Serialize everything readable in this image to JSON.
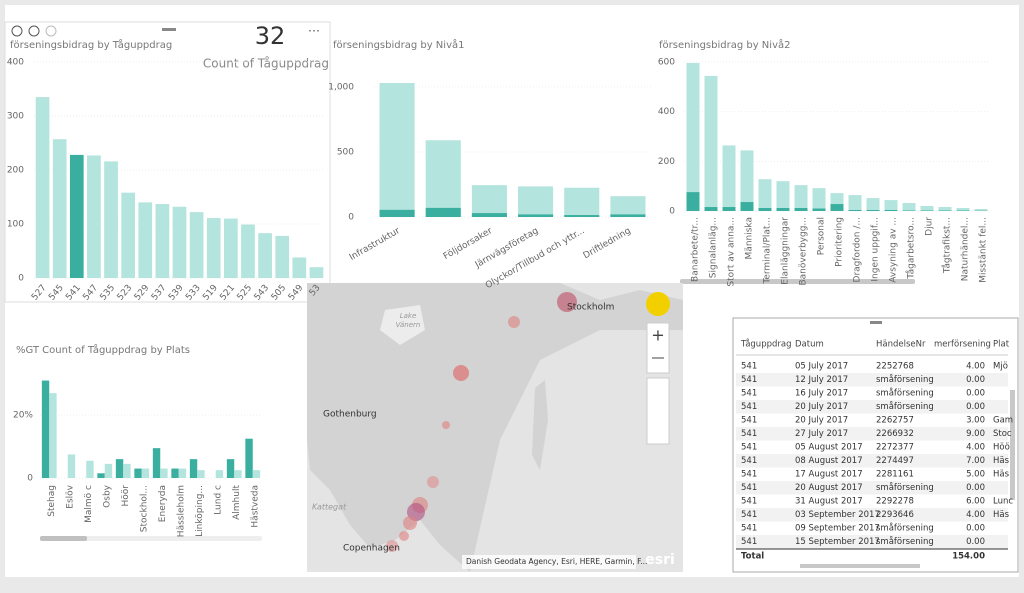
{
  "chart_data": [
    {
      "type": "bar",
      "title": "förseningsbidrag by Tåguppdrag",
      "categories": [
        "527",
        "545",
        "541",
        "547",
        "535",
        "523",
        "529",
        "537",
        "539",
        "533",
        "519",
        "521",
        "525",
        "543",
        "505",
        "549",
        "53"
      ],
      "series": [
        {
          "values": [
            335,
            257,
            228,
            227,
            216,
            158,
            140,
            137,
            132,
            122,
            111,
            110,
            99,
            83,
            78,
            38,
            20
          ],
          "colors": [
            "#b3e4dd",
            "#b3e4dd",
            "#3aaf9f",
            "#b3e4dd",
            "#b3e4dd",
            "#b3e4dd",
            "#b3e4dd",
            "#b3e4dd",
            "#b3e4dd",
            "#b3e4dd",
            "#b3e4dd",
            "#b3e4dd",
            "#b3e4dd",
            "#b3e4dd",
            "#b3e4dd",
            "#b3e4dd",
            "#b3e4dd"
          ]
        }
      ],
      "ylim": [
        0,
        400
      ],
      "yticks": [
        0,
        100,
        200,
        300,
        400
      ]
    },
    {
      "type": "bar",
      "title": "förseningsbidrag by Nivå1",
      "categories": [
        "Infrastruktur",
        null,
        "Följdorsaker",
        "Järnvägsföretag",
        "Olyckor/Tillbud och yttr...",
        "Driftledning"
      ],
      "series": [
        {
          "color": "#b3e4dd",
          "values": [
            1030,
            590,
            245,
            235,
            225,
            160
          ]
        },
        {
          "color": "#3aaf9f",
          "values": [
            55,
            70,
            30,
            20,
            15,
            20
          ]
        }
      ],
      "ylim": [
        0,
        1130
      ],
      "yticks": [
        0,
        500,
        {
          "value": 1000,
          "label": "1,000"
        }
      ]
    },
    {
      "type": "bar",
      "title": "förseningsbidrag by Nivå2",
      "categories": [
        "Banarbete/tr...",
        "Signalanläg...",
        "Stort av anna...",
        "Människa",
        "Terminal/Plat...",
        "Elanläggningar",
        "Banöverbygg...",
        "Personal",
        "Prioritering",
        "Dragfordon /...",
        "Ingen uppgif...",
        "Avsyning av ...",
        "Tågarbetsro...",
        "Djur",
        "Tågtrafikst...",
        "Naturhändel...",
        "Misstänkt fel..."
      ],
      "series": [
        {
          "color": "#b3e4dd",
          "values": [
            596,
            544,
            264,
            244,
            128,
            120,
            104,
            92,
            72,
            64,
            52,
            44,
            32,
            20,
            16,
            12,
            8
          ]
        },
        {
          "color": "#3aaf9f",
          "values": [
            76,
            16,
            16,
            36,
            12,
            12,
            12,
            10,
            28,
            4,
            4,
            4,
            2,
            2,
            2,
            2,
            1
          ]
        }
      ],
      "ylim": [
        0,
        600
      ],
      "yticks": [
        0,
        200,
        400,
        600
      ]
    },
    {
      "type": "bar",
      "title": "%GT Count of Tåguppdrag by Plats",
      "categories": [
        "Stehag",
        "Eslöv",
        "Malmö c",
        "Osby",
        "Höör",
        "Stockhol...",
        "Eneryda",
        "Hässleholm",
        "Linköping...",
        "Lund c",
        "Almhult",
        "Hästveda"
      ],
      "series": [
        {
          "color": "#3aaf9f",
          "values": [
            31,
            0,
            0,
            1.5,
            6,
            3,
            9.5,
            3,
            6,
            0,
            6,
            12.5
          ]
        },
        {
          "color": "#b3e4dd",
          "values": [
            27,
            7.5,
            5.5,
            4.5,
            4.5,
            3,
            3,
            3,
            2.5,
            2.5,
            2.5,
            2.5
          ]
        }
      ],
      "ylim": [
        0,
        35
      ],
      "yticks": [
        0,
        {
          "value": 20,
          "label": "20%"
        }
      ]
    }
  ],
  "card": {
    "value": "32",
    "label": "Count of Tåguppdrag"
  },
  "map": {
    "labels": [
      "Stockholm",
      "Gothenburg",
      "Kattegat",
      "Copenhagen"
    ],
    "lake": [
      "Lake",
      "Vänern"
    ],
    "attribution": "Danish Geodata Agency, Esri, HERE, Garmin, F...",
    "logo": "esri"
  },
  "table": {
    "columns": [
      "Tåguppdrag",
      "Datum",
      "HändelseNr",
      "merförsening",
      "Plat"
    ],
    "rows": [
      [
        "541",
        "05 July 2017",
        "2252768",
        "4.00",
        "Mjö"
      ],
      [
        "541",
        "12 July 2017",
        "småförsening",
        "0.00",
        null
      ],
      [
        "541",
        "16 July 2017",
        "småförsening",
        "0.00",
        null
      ],
      [
        "541",
        "20 July 2017",
        "småförsening",
        "0.00",
        null
      ],
      [
        "541",
        "20 July 2017",
        "2262757",
        "3.00",
        "Gam"
      ],
      [
        "541",
        "27 July 2017",
        "2266932",
        "9.00",
        "Stoc"
      ],
      [
        "541",
        "05 August 2017",
        "2272377",
        "4.00",
        "Höö"
      ],
      [
        "541",
        "08 August 2017",
        "2274497",
        "7.00",
        "Häs"
      ],
      [
        "541",
        "17 August 2017",
        "2281161",
        "5.00",
        "Häs"
      ],
      [
        "541",
        "20 August 2017",
        "småförsening",
        "0.00",
        null
      ],
      [
        "541",
        "31 August 2017",
        "2292278",
        "6.00",
        "Lunc"
      ],
      [
        "541",
        "03 September 2017",
        "2293646",
        "4.00",
        "Häs"
      ],
      [
        "541",
        "09 September 2017",
        "småförsening",
        "0.00",
        null
      ],
      [
        "541",
        "15 September 2017",
        "småförsening",
        "0.00",
        null
      ]
    ],
    "total": {
      "label": "Total",
      "value": "154.00"
    }
  }
}
